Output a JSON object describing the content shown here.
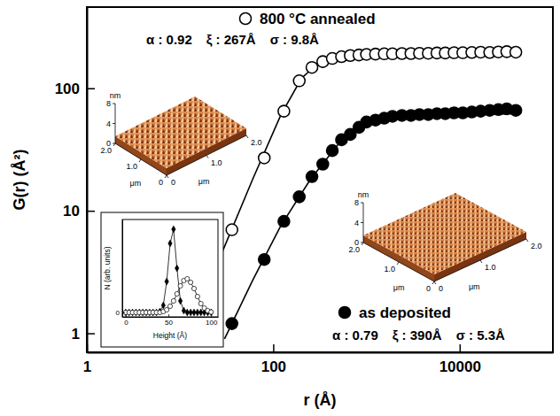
{
  "chart_data": [
    {
      "type": "scatter",
      "log": true,
      "grid": false,
      "legend": "inside",
      "xlabel": "r (Å)",
      "ylabel": "G(r)  (Å²)",
      "xlim": [
        1,
        100000
      ],
      "ylim": [
        0.7,
        460
      ],
      "xticks": [
        1,
        100,
        10000
      ],
      "yticks": [
        1,
        10,
        100
      ],
      "series": [
        {
          "name": "800 °C annealed",
          "type": "scatter",
          "marker": "open-circle",
          "color": "#000000",
          "annotations": [
            "α : 0.92",
            "ξ : 267Å",
            "σ : 9.8Å"
          ],
          "x": [
            36,
            80,
            130,
            190,
            260,
            340,
            430,
            540,
            670,
            830,
            1000,
            1250,
            1550,
            1900,
            2400,
            3000,
            3700,
            4600,
            5700,
            7000,
            8700,
            10800,
            13500,
            16800,
            21000,
            26000,
            32000,
            40000
          ],
          "values": [
            7,
            27,
            65,
            115,
            148,
            165,
            175,
            181,
            185,
            187,
            189,
            190,
            191,
            191,
            192,
            192,
            193,
            193,
            194,
            194,
            195,
            195,
            196,
            197,
            196,
            198,
            199,
            197
          ]
        },
        {
          "name": "as deposited",
          "type": "scatter",
          "marker": "circle",
          "color": "#000000",
          "annotations": [
            "α : 0.79",
            "ξ : 390Å",
            "σ : 5.3Å"
          ],
          "x": [
            36,
            80,
            130,
            190,
            260,
            340,
            430,
            540,
            670,
            830,
            1000,
            1250,
            1550,
            1900,
            2400,
            3000,
            3700,
            4600,
            5700,
            7000,
            8700,
            10800,
            13500,
            16800,
            21000,
            26000,
            32000,
            40000
          ],
          "values": [
            1.2,
            4.0,
            8.2,
            13,
            19,
            24,
            31,
            38,
            42,
            48,
            53,
            55,
            57,
            59,
            60,
            60,
            61,
            61,
            62,
            62,
            63,
            63,
            64,
            65,
            66,
            67,
            68,
            66
          ]
        },
        {
          "type": "line",
          "line_style": "solid",
          "color": "#000000",
          "x": [
            28,
            60,
            120,
            200,
            300,
            500,
            1000,
            40000
          ],
          "values": [
            4.5,
            18,
            60,
            120,
            160,
            183,
            190,
            190
          ]
        },
        {
          "type": "line",
          "line_style": "solid",
          "color": "#000000",
          "x": [
            30,
            60,
            120,
            250,
            500,
            1000,
            2000,
            40000
          ],
          "values": [
            0.9,
            2.7,
            7.5,
            18,
            35,
            52,
            59,
            62
          ]
        }
      ]
    },
    {
      "type": "line",
      "xlabel": "Height (Å)",
      "ylabel": "N (arb. units)",
      "xlim": [
        -4,
        108
      ],
      "ylim": [
        -0.5,
        10.5
      ],
      "xticks": [
        0,
        50,
        100
      ],
      "yticks": [
        0
      ],
      "x": [
        0,
        4,
        8,
        12,
        16,
        20,
        24,
        28,
        32,
        36,
        40,
        44,
        48,
        52,
        56,
        60,
        64,
        68,
        72,
        76,
        80,
        84,
        88,
        92,
        96,
        100
      ],
      "series": [
        {
          "marker": "diamond",
          "color": "#000000",
          "values": [
            0,
            0,
            0,
            0,
            0,
            0,
            0,
            0,
            0,
            0,
            0.1,
            0.8,
            3.5,
            7.8,
            9.4,
            5.0,
            1.3,
            0.2,
            0,
            0,
            0,
            0,
            0,
            0,
            0,
            0
          ]
        },
        {
          "marker": "open-circle",
          "color": "#000000",
          "values": [
            0,
            0,
            0,
            0,
            0,
            0,
            0,
            0,
            0,
            0,
            0,
            0.1,
            0.3,
            0.7,
            1.3,
            2.1,
            3.0,
            3.6,
            3.8,
            3.4,
            2.7,
            1.8,
            1.0,
            0.5,
            0.2,
            0.05
          ]
        }
      ]
    },
    {
      "type": "surface",
      "xlabel": "μm",
      "ylabel": "μm",
      "zlabel": "nm",
      "xlim": [
        0,
        2
      ],
      "ylim": [
        0,
        2
      ],
      "zlim": [
        0,
        8
      ],
      "xticks": [
        0,
        {
          "value": 1,
          "label": "1.0"
        },
        {
          "value": 2,
          "label": "2.0"
        }
      ],
      "yticks": [
        0,
        {
          "value": 1,
          "label": "1.0"
        },
        {
          "value": 2,
          "label": "2.0"
        }
      ],
      "zticks": [
        0,
        4,
        8
      ]
    },
    {
      "type": "surface",
      "xlabel": "μm",
      "ylabel": "μm",
      "zlabel": "nm",
      "xlim": [
        0,
        2
      ],
      "ylim": [
        0,
        2
      ],
      "zlim": [
        0,
        8
      ],
      "xticks": [
        0,
        {
          "value": 1,
          "label": "1.0"
        },
        {
          "value": 2,
          "label": "2.0"
        }
      ],
      "yticks": [
        0,
        {
          "value": 1,
          "label": "1.0"
        },
        {
          "value": 2,
          "label": "2.0"
        }
      ],
      "zticks": [
        0,
        4,
        8
      ]
    }
  ]
}
